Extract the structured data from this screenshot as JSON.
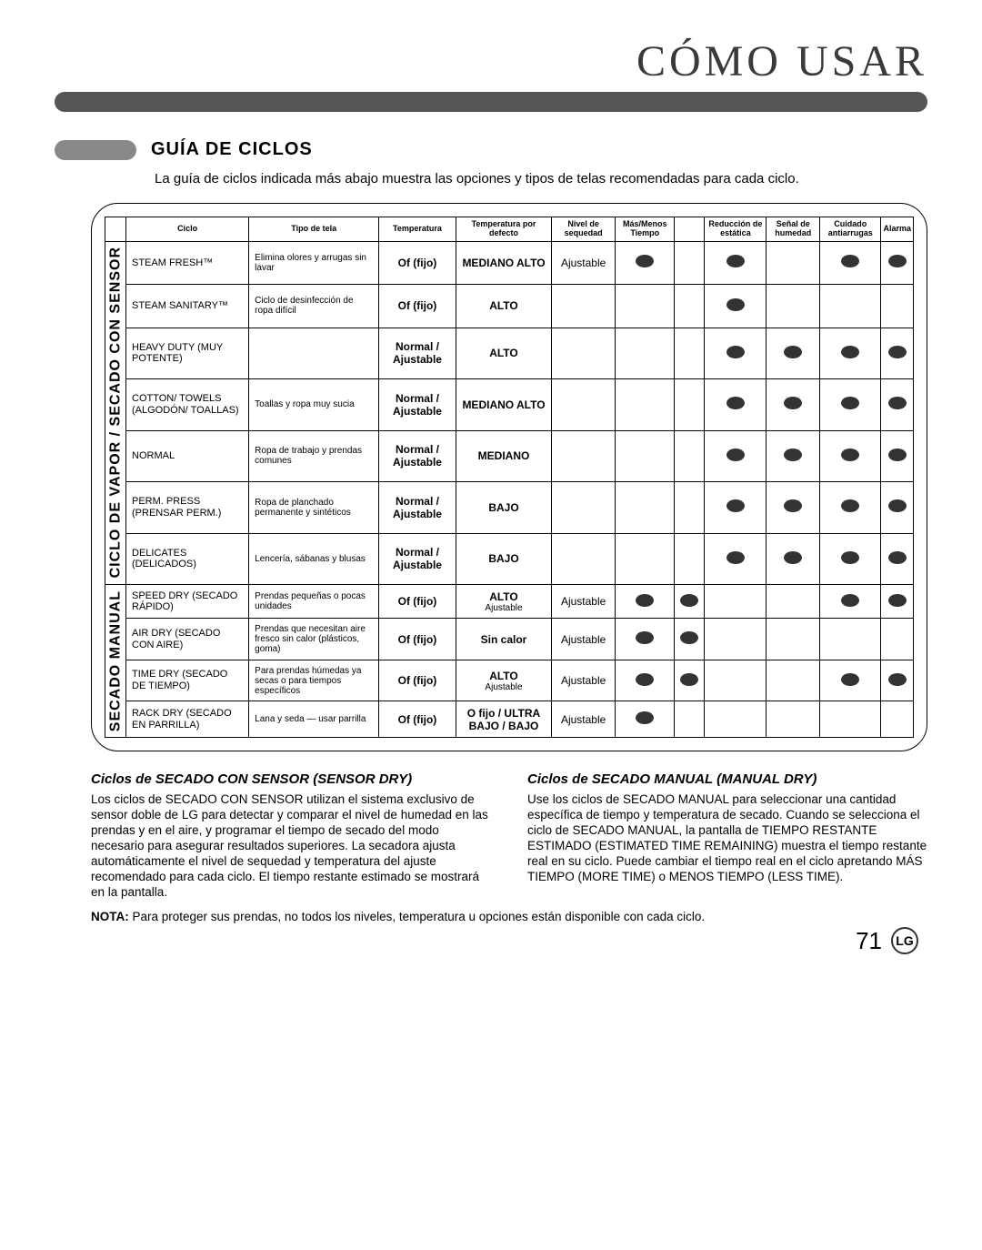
{
  "header": {
    "title": "CÓMO USAR"
  },
  "section": {
    "title": "GUÍA DE CICLOS"
  },
  "intro": "La guía de ciclos indicada más abajo muestra las opciones y tipos de telas recomendadas para cada ciclo.",
  "groups": [
    {
      "label": "CICLO DE VAPOR / SECADO CON SENSOR"
    },
    {
      "label": "SECADO MANUAL"
    }
  ],
  "thead": {
    "c0": "Ciclo",
    "c1": "Tipo de tela",
    "c2": "Temperatura",
    "c3": "Temperatura por defecto",
    "c4": "Nivel de sequedad",
    "c5": "Más/Menos Tiempo",
    "c6": "",
    "c7": "Reducción de estática",
    "c8": "Señal de humedad",
    "c9": "Cuidado antiarrugas",
    "c10": "Alarma"
  },
  "rows": [
    {
      "group": 0,
      "name": "STEAM FRESH™",
      "fabric": "Elimina olores y arrugas sin lavar",
      "temp": "Of (fijo)",
      "default": "MEDIANO ALTO",
      "dry": "Ajustable",
      "d": [
        1,
        0,
        1,
        0,
        0,
        0,
        1,
        1
      ]
    },
    {
      "group": 0,
      "name": "STEAM SANITARY™",
      "fabric": "Ciclo de desinfección de ropa difícil",
      "temp": "Of (fijo)",
      "default": "ALTO",
      "dry": "",
      "d": [
        0,
        0,
        1,
        0,
        0,
        0,
        0,
        0
      ]
    },
    {
      "group": 0,
      "name": "HEAVY DUTY (MUY POTENTE)",
      "fabric": "",
      "temp": "Normal / Ajustable",
      "default": "ALTO",
      "dry": "",
      "d": [
        0,
        0,
        1,
        1,
        1,
        1,
        1,
        1
      ]
    },
    {
      "group": 0,
      "name": "COTTON/ TOWELS (ALGODÓN/ TOALLAS)",
      "fabric": "Toallas y ropa muy sucia",
      "temp": "Normal / Ajustable",
      "default": "MEDIANO ALTO",
      "dry": "",
      "d": [
        0,
        0,
        1,
        1,
        1,
        1,
        1,
        1
      ]
    },
    {
      "group": 0,
      "name": "NORMAL",
      "fabric": "Ropa de trabajo y prendas comunes",
      "temp": "Normal / Ajustable",
      "default": "MEDIANO",
      "dry": "",
      "d": [
        0,
        0,
        1,
        1,
        1,
        1,
        1,
        1
      ]
    },
    {
      "group": 0,
      "name": "PERM. PRESS (PRENSAR PERM.)",
      "fabric": "Ropa de planchado permanente y sintéticos",
      "temp": "Normal / Ajustable",
      "default": "BAJO",
      "dry": "",
      "d": [
        0,
        0,
        1,
        0,
        1,
        1,
        1,
        1
      ]
    },
    {
      "group": 0,
      "name": "DELICATES (DELICADOS)",
      "fabric": "Lencería, sábanas y blusas",
      "temp": "Normal / Ajustable",
      "default": "BAJO",
      "dry": "",
      "d": [
        0,
        0,
        1,
        0,
        1,
        1,
        1,
        1
      ]
    },
    {
      "group": 1,
      "name": "SPEED DRY (SECADO RÁPIDO)",
      "fabric": "Prendas pequeñas o pocas unidades",
      "temp": "Of (fijo)",
      "default": "ALTO",
      "sub": "Ajustable",
      "dry": "Ajustable",
      "d": [
        1,
        1,
        0,
        0,
        0,
        0,
        1,
        1
      ]
    },
    {
      "group": 1,
      "name": "AIR DRY (SECADO CON AIRE)",
      "fabric": "Prendas que necesitan aire fresco sin calor (plásticos, goma)",
      "temp": "Of (fijo)",
      "default": "Sin calor",
      "sub": "",
      "dry": "Ajustable",
      "d": [
        1,
        1,
        0,
        0,
        0,
        0,
        0,
        0
      ]
    },
    {
      "group": 1,
      "name": "TIME DRY (SECADO DE TIEMPO)",
      "fabric": "Para prendas húmedas ya secas o para tiempos específicos",
      "temp": "Of (fijo)",
      "default": "ALTO",
      "sub": "Ajustable",
      "dry": "Ajustable",
      "d": [
        1,
        1,
        0,
        0,
        0,
        0,
        1,
        1
      ]
    },
    {
      "group": 1,
      "name": "RACK DRY (SECADO EN PARRILLA)",
      "fabric": "Lana y seda — usar parrilla",
      "temp": "Of (fijo)",
      "default": "O fijo / ULTRA BAJO / BAJO",
      "sub": "",
      "dry": "Ajustable",
      "d": [
        1,
        0,
        0,
        0,
        0,
        0,
        0,
        0
      ]
    }
  ],
  "columns": {
    "left": {
      "title": "Ciclos de SECADO CON SENSOR (SENSOR DRY)",
      "body": "Los ciclos de SECADO CON SENSOR utilizan el sistema exclusivo de sensor doble de LG para detectar y comparar el nivel de humedad en las prendas y en el aire, y programar el tiempo de secado del modo necesario para asegurar resultados superiores. La secadora ajusta automáticamente el nivel de sequedad y temperatura del ajuste recomendado para cada ciclo. El tiempo restante estimado se mostrará en la pantalla."
    },
    "right": {
      "title": "Ciclos de SECADO MANUAL (MANUAL DRY)",
      "body": "Use los ciclos de SECADO MANUAL para seleccionar una cantidad específica de tiempo y temperatura de secado. Cuando se selecciona el ciclo de SECADO MANUAL, la pantalla de TIEMPO RESTANTE ESTIMADO (ESTIMATED TIME REMAINING) muestra el tiempo restante real en su ciclo. Puede cambiar el tiempo real en el ciclo apretando MÁS TIEMPO (MORE TIME) o MENOS TIEMPO (LESS TIME)."
    }
  },
  "nota": {
    "label": "NOTA:",
    "text": " Para proteger sus prendas, no todos los niveles, temperatura u opciones están disponible con cada ciclo."
  },
  "page": "71",
  "logo": "LG"
}
